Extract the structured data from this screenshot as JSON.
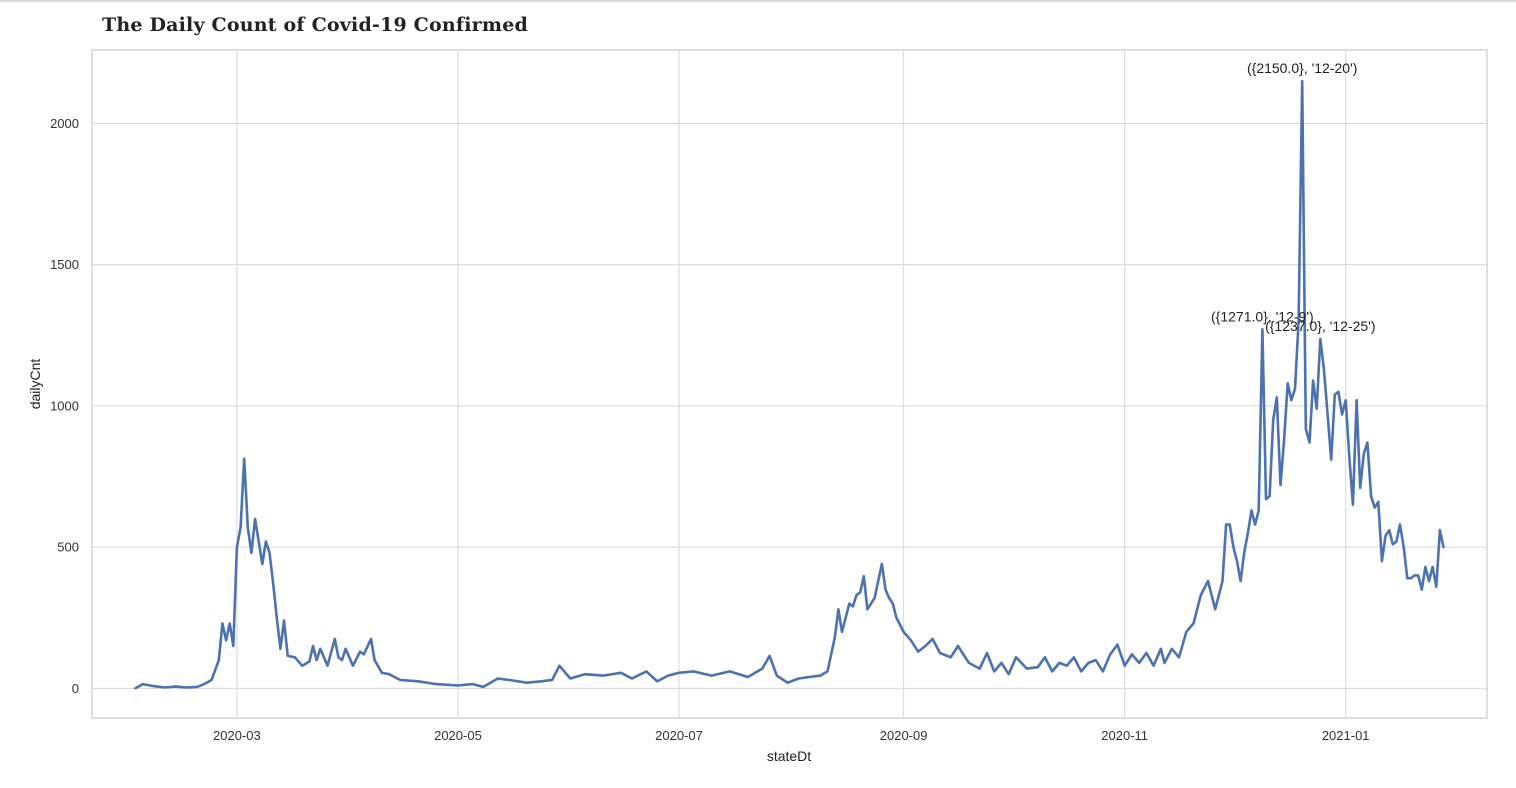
{
  "chart_data": {
    "type": "line",
    "title": "The Daily Count of Covid-19 Confirmed",
    "xlabel": "stateDt",
    "ylabel": "dailyCnt",
    "x_range": [
      "2020-01-21",
      "2021-02-09"
    ],
    "ylim": [
      -105,
      2260
    ],
    "grid": true,
    "line_color": "#4c72b0",
    "x_ticks": [
      "2020-03",
      "2020-05",
      "2020-07",
      "2020-09",
      "2020-11",
      "2021-01"
    ],
    "y_ticks": [
      0,
      500,
      1000,
      1500,
      2000
    ],
    "series": [
      {
        "points": [
          [
            "2020-02-02",
            0
          ],
          [
            "2020-02-04",
            15
          ],
          [
            "2020-02-07",
            8
          ],
          [
            "2020-02-10",
            3
          ],
          [
            "2020-02-13",
            6
          ],
          [
            "2020-02-16",
            3
          ],
          [
            "2020-02-19",
            5
          ],
          [
            "2020-02-21",
            15
          ],
          [
            "2020-02-23",
            30
          ],
          [
            "2020-02-25",
            100
          ],
          [
            "2020-02-26",
            230
          ],
          [
            "2020-02-27",
            170
          ],
          [
            "2020-02-28",
            230
          ],
          [
            "2020-02-29",
            150
          ],
          [
            "2020-03-01",
            500
          ],
          [
            "2020-03-02",
            570
          ],
          [
            "2020-03-03",
            813
          ],
          [
            "2020-03-04",
            570
          ],
          [
            "2020-03-05",
            480
          ],
          [
            "2020-03-06",
            600
          ],
          [
            "2020-03-07",
            520
          ],
          [
            "2020-03-08",
            440
          ],
          [
            "2020-03-09",
            520
          ],
          [
            "2020-03-10",
            480
          ],
          [
            "2020-03-11",
            370
          ],
          [
            "2020-03-12",
            250
          ],
          [
            "2020-03-13",
            140
          ],
          [
            "2020-03-14",
            240
          ],
          [
            "2020-03-15",
            115
          ],
          [
            "2020-03-17",
            110
          ],
          [
            "2020-03-19",
            80
          ],
          [
            "2020-03-21",
            95
          ],
          [
            "2020-03-22",
            150
          ],
          [
            "2020-03-23",
            100
          ],
          [
            "2020-03-24",
            140
          ],
          [
            "2020-03-26",
            80
          ],
          [
            "2020-03-28",
            175
          ],
          [
            "2020-03-29",
            110
          ],
          [
            "2020-03-30",
            100
          ],
          [
            "2020-03-31",
            140
          ],
          [
            "2020-04-02",
            80
          ],
          [
            "2020-04-04",
            130
          ],
          [
            "2020-04-05",
            120
          ],
          [
            "2020-04-07",
            175
          ],
          [
            "2020-04-08",
            100
          ],
          [
            "2020-04-10",
            55
          ],
          [
            "2020-04-12",
            50
          ],
          [
            "2020-04-15",
            30
          ],
          [
            "2020-04-20",
            25
          ],
          [
            "2020-04-25",
            15
          ],
          [
            "2020-05-01",
            10
          ],
          [
            "2020-05-05",
            15
          ],
          [
            "2020-05-08",
            5
          ],
          [
            "2020-05-12",
            35
          ],
          [
            "2020-05-15",
            30
          ],
          [
            "2020-05-20",
            20
          ],
          [
            "2020-05-24",
            25
          ],
          [
            "2020-05-27",
            30
          ],
          [
            "2020-05-29",
            80
          ],
          [
            "2020-06-01",
            35
          ],
          [
            "2020-06-05",
            50
          ],
          [
            "2020-06-10",
            45
          ],
          [
            "2020-06-15",
            55
          ],
          [
            "2020-06-18",
            35
          ],
          [
            "2020-06-22",
            60
          ],
          [
            "2020-06-25",
            25
          ],
          [
            "2020-06-28",
            45
          ],
          [
            "2020-07-01",
            55
          ],
          [
            "2020-07-05",
            60
          ],
          [
            "2020-07-10",
            45
          ],
          [
            "2020-07-15",
            60
          ],
          [
            "2020-07-20",
            40
          ],
          [
            "2020-07-24",
            70
          ],
          [
            "2020-07-26",
            115
          ],
          [
            "2020-07-28",
            45
          ],
          [
            "2020-07-31",
            20
          ],
          [
            "2020-08-03",
            35
          ],
          [
            "2020-08-06",
            40
          ],
          [
            "2020-08-09",
            45
          ],
          [
            "2020-08-11",
            60
          ],
          [
            "2020-08-13",
            180
          ],
          [
            "2020-08-14",
            280
          ],
          [
            "2020-08-15",
            200
          ],
          [
            "2020-08-17",
            300
          ],
          [
            "2020-08-18",
            290
          ],
          [
            "2020-08-19",
            330
          ],
          [
            "2020-08-20",
            340
          ],
          [
            "2020-08-21",
            397
          ],
          [
            "2020-08-22",
            280
          ],
          [
            "2020-08-24",
            320
          ],
          [
            "2020-08-26",
            441
          ],
          [
            "2020-08-27",
            350
          ],
          [
            "2020-08-28",
            320
          ],
          [
            "2020-08-29",
            300
          ],
          [
            "2020-08-30",
            250
          ],
          [
            "2020-09-01",
            200
          ],
          [
            "2020-09-03",
            170
          ],
          [
            "2020-09-05",
            130
          ],
          [
            "2020-09-07",
            150
          ],
          [
            "2020-09-09",
            175
          ],
          [
            "2020-09-11",
            125
          ],
          [
            "2020-09-14",
            110
          ],
          [
            "2020-09-16",
            150
          ],
          [
            "2020-09-19",
            90
          ],
          [
            "2020-09-22",
            70
          ],
          [
            "2020-09-24",
            125
          ],
          [
            "2020-09-26",
            60
          ],
          [
            "2020-09-28",
            90
          ],
          [
            "2020-09-30",
            50
          ],
          [
            "2020-10-02",
            110
          ],
          [
            "2020-10-05",
            70
          ],
          [
            "2020-10-08",
            75
          ],
          [
            "2020-10-10",
            110
          ],
          [
            "2020-10-12",
            60
          ],
          [
            "2020-10-14",
            90
          ],
          [
            "2020-10-16",
            80
          ],
          [
            "2020-10-18",
            110
          ],
          [
            "2020-10-20",
            60
          ],
          [
            "2020-10-22",
            90
          ],
          [
            "2020-10-24",
            100
          ],
          [
            "2020-10-26",
            60
          ],
          [
            "2020-10-28",
            120
          ],
          [
            "2020-10-30",
            155
          ],
          [
            "2020-11-01",
            80
          ],
          [
            "2020-11-03",
            120
          ],
          [
            "2020-11-05",
            90
          ],
          [
            "2020-11-07",
            125
          ],
          [
            "2020-11-09",
            80
          ],
          [
            "2020-11-11",
            140
          ],
          [
            "2020-11-12",
            90
          ],
          [
            "2020-11-14",
            140
          ],
          [
            "2020-11-16",
            110
          ],
          [
            "2020-11-18",
            200
          ],
          [
            "2020-11-20",
            230
          ],
          [
            "2020-11-22",
            330
          ],
          [
            "2020-11-24",
            380
          ],
          [
            "2020-11-25",
            330
          ],
          [
            "2020-11-26",
            280
          ],
          [
            "2020-11-28",
            380
          ],
          [
            "2020-11-29",
            580
          ],
          [
            "2020-11-30",
            580
          ],
          [
            "2020-12-01",
            500
          ],
          [
            "2020-12-02",
            450
          ],
          [
            "2020-12-03",
            380
          ],
          [
            "2020-12-04",
            480
          ],
          [
            "2020-12-05",
            550
          ],
          [
            "2020-12-06",
            630
          ],
          [
            "2020-12-07",
            580
          ],
          [
            "2020-12-08",
            630
          ],
          [
            "2020-12-09",
            1271
          ],
          [
            "2020-12-10",
            670
          ],
          [
            "2020-12-11",
            680
          ],
          [
            "2020-12-12",
            950
          ],
          [
            "2020-12-13",
            1030
          ],
          [
            "2020-12-14",
            720
          ],
          [
            "2020-12-15",
            880
          ],
          [
            "2020-12-16",
            1080
          ],
          [
            "2020-12-17",
            1020
          ],
          [
            "2020-12-18",
            1060
          ],
          [
            "2020-12-19",
            1300
          ],
          [
            "2020-12-20",
            2150
          ],
          [
            "2020-12-21",
            920
          ],
          [
            "2020-12-22",
            870
          ],
          [
            "2020-12-23",
            1090
          ],
          [
            "2020-12-24",
            990
          ],
          [
            "2020-12-25",
            1237
          ],
          [
            "2020-12-26",
            1130
          ],
          [
            "2020-12-27",
            970
          ],
          [
            "2020-12-28",
            810
          ],
          [
            "2020-12-29",
            1040
          ],
          [
            "2020-12-30",
            1050
          ],
          [
            "2020-12-31",
            970
          ],
          [
            "2021-01-01",
            1020
          ],
          [
            "2021-01-02",
            820
          ],
          [
            "2021-01-03",
            650
          ],
          [
            "2021-01-04",
            1020
          ],
          [
            "2021-01-05",
            710
          ],
          [
            "2021-01-06",
            830
          ],
          [
            "2021-01-07",
            870
          ],
          [
            "2021-01-08",
            680
          ],
          [
            "2021-01-09",
            640
          ],
          [
            "2021-01-10",
            660
          ],
          [
            "2021-01-11",
            450
          ],
          [
            "2021-01-12",
            540
          ],
          [
            "2021-01-13",
            560
          ],
          [
            "2021-01-14",
            510
          ],
          [
            "2021-01-15",
            520
          ],
          [
            "2021-01-16",
            580
          ],
          [
            "2021-01-17",
            500
          ],
          [
            "2021-01-18",
            390
          ],
          [
            "2021-01-19",
            390
          ],
          [
            "2021-01-20",
            400
          ],
          [
            "2021-01-21",
            400
          ],
          [
            "2021-01-22",
            350
          ],
          [
            "2021-01-23",
            430
          ],
          [
            "2021-01-24",
            380
          ],
          [
            "2021-01-25",
            430
          ],
          [
            "2021-01-26",
            360
          ],
          [
            "2021-01-27",
            560
          ],
          [
            "2021-01-28",
            500
          ]
        ]
      }
    ],
    "annotations": [
      {
        "label": "({2150.0}, '12-20')",
        "x": "2020-12-20",
        "y": 2150
      },
      {
        "label": "({1271.0}, '12-9')",
        "x": "2020-12-09",
        "y": 1271
      },
      {
        "label": "({1237.0}, '12-25')",
        "x": "2020-12-25",
        "y": 1237
      }
    ]
  }
}
